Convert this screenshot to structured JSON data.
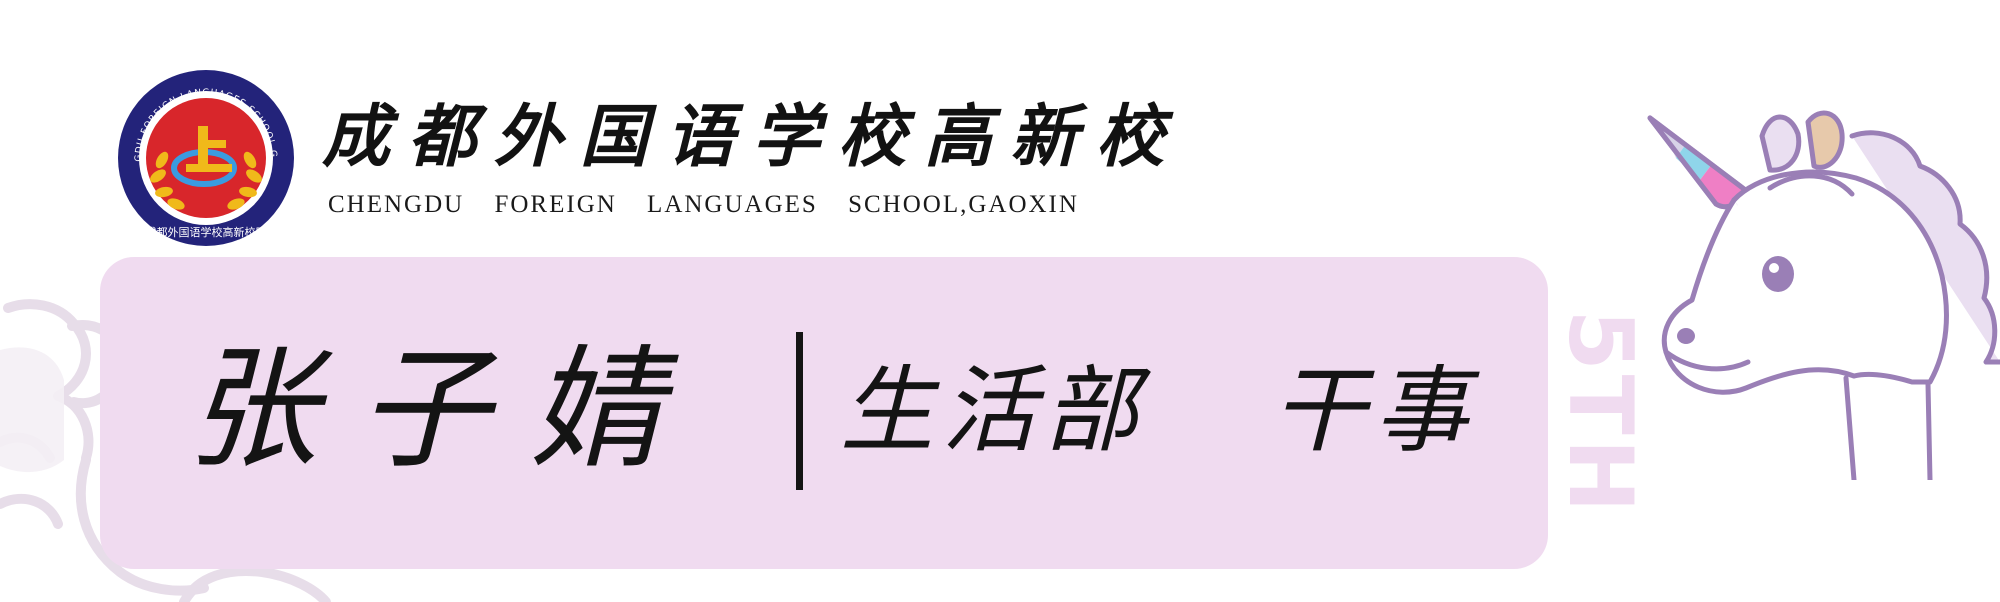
{
  "school": {
    "name_cn": "成都外国语学校高新校区",
    "name_en": "CHENGDU FOREIGN LANGUAGES SCHOOL,GAOXIN",
    "logo": {
      "ring_text": "CHENGDU FOREIGN LANGUAGES SCHOOL GAOXIN",
      "bottom_text": "成都外国语学校高新校区",
      "emblem": "上"
    }
  },
  "card": {
    "person_name": "张子婧",
    "department": "生活部",
    "position": "干事",
    "side_mark": "5TH"
  },
  "colors": {
    "card_bg": "#f0dbf0",
    "logo_ring": "#23237a",
    "logo_inner": "#d8262b",
    "logo_gold": "#f0b91a",
    "unicorn_outline": "#9a7fb6",
    "unicorn_pink": "#ef7fc5",
    "unicorn_blue": "#8fd5ea",
    "unicorn_tan": "#e7c9ab"
  },
  "icons": {
    "logo": "school-emblem-icon",
    "right_mascot": "unicorn-icon",
    "left_mascot": "unicorn-outline-icon"
  }
}
